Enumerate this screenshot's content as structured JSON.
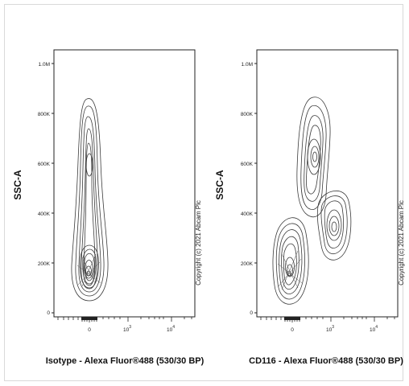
{
  "chart_data": [
    {
      "type": "contour",
      "xlabel": "Isotype - Alexa Fluor®488 (530/30 BP)",
      "ylabel": "SSC-A",
      "x_ticks": [
        {
          "label": "0",
          "value": 0
        },
        {
          "label": "10",
          "sup": "3",
          "value": 1000
        },
        {
          "label": "10",
          "sup": "4",
          "value": 10000
        }
      ],
      "y_ticks": [
        "0",
        "200K",
        "400K",
        "600K",
        "800K",
        "1.0M"
      ],
      "ylim": [
        0,
        1000000
      ],
      "populations": [
        {
          "x_center": 0,
          "y_center": 150000,
          "y_top": 850000
        }
      ],
      "watermark": "Copyright (c) 2021 Abcam Plc"
    },
    {
      "type": "contour",
      "xlabel": "CD116 - Alexa Fluor®488 (530/30 BP)",
      "ylabel": "SSC-A",
      "x_ticks": [
        {
          "label": "0",
          "value": 0
        },
        {
          "label": "10",
          "sup": "3",
          "value": 1000
        },
        {
          "label": "10",
          "sup": "4",
          "value": 10000
        }
      ],
      "y_ticks": [
        "0",
        "200K",
        "400K",
        "600K",
        "800K",
        "1.0M"
      ],
      "ylim": [
        0,
        1000000
      ],
      "populations": [
        {
          "x_center": 0,
          "y_center": 150000
        },
        {
          "x_center": 400,
          "y_center": 620000
        },
        {
          "x_center": 1500,
          "y_center": 350000
        }
      ],
      "watermark": "Copyright (c) 2021 Abcam Plc"
    }
  ]
}
